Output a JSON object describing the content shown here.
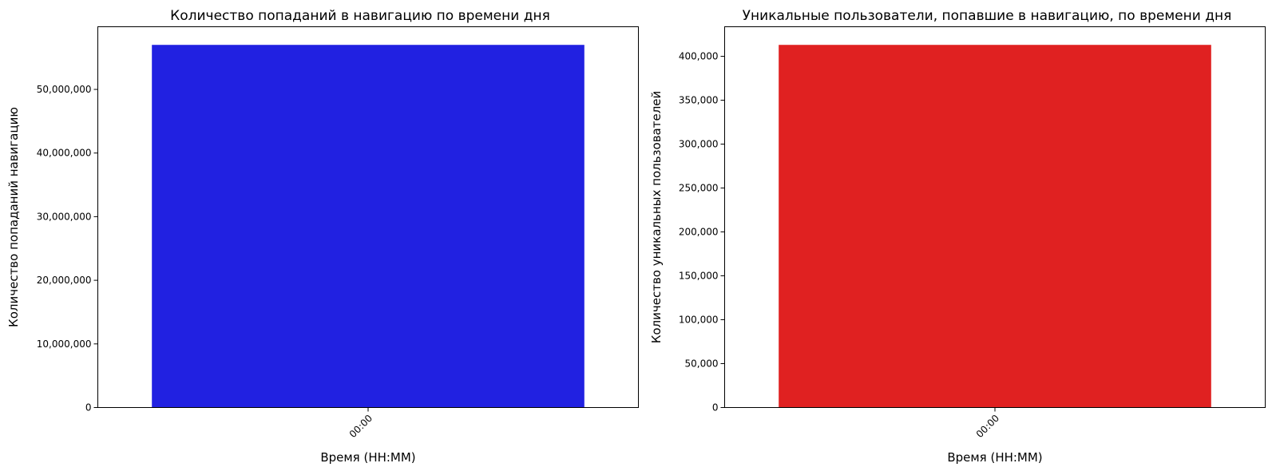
{
  "chart_data": [
    {
      "type": "bar",
      "title": "Количество попаданий в навигацию по времени дня",
      "xlabel": "Время (HH:MM)",
      "ylabel": "Количество попаданий навигацию",
      "categories": [
        "00:00"
      ],
      "values": [
        57000000
      ],
      "ylim": [
        0,
        59850000
      ],
      "yticks": [
        0,
        10000000,
        20000000,
        30000000,
        40000000,
        50000000
      ],
      "ytick_labels": [
        "0",
        "10,000,000",
        "20,000,000",
        "30,000,000",
        "40,000,000",
        "50,000,000"
      ],
      "bar_color": "#2121e1",
      "grid": false,
      "legend": false
    },
    {
      "type": "bar",
      "title": "Уникальные пользователи, попавшие в навигацию, по времени дня",
      "xlabel": "Время (HH:MM)",
      "ylabel": "Количество уникальных пользователей",
      "categories": [
        "00:00"
      ],
      "values": [
        413000
      ],
      "ylim": [
        0,
        433650
      ],
      "yticks": [
        0,
        50000,
        100000,
        150000,
        200000,
        250000,
        300000,
        350000,
        400000
      ],
      "ytick_labels": [
        "0",
        "50,000",
        "100,000",
        "150,000",
        "200,000",
        "250,000",
        "300,000",
        "350,000",
        "400,000"
      ],
      "bar_color": "#e02121",
      "grid": false,
      "legend": false
    }
  ]
}
